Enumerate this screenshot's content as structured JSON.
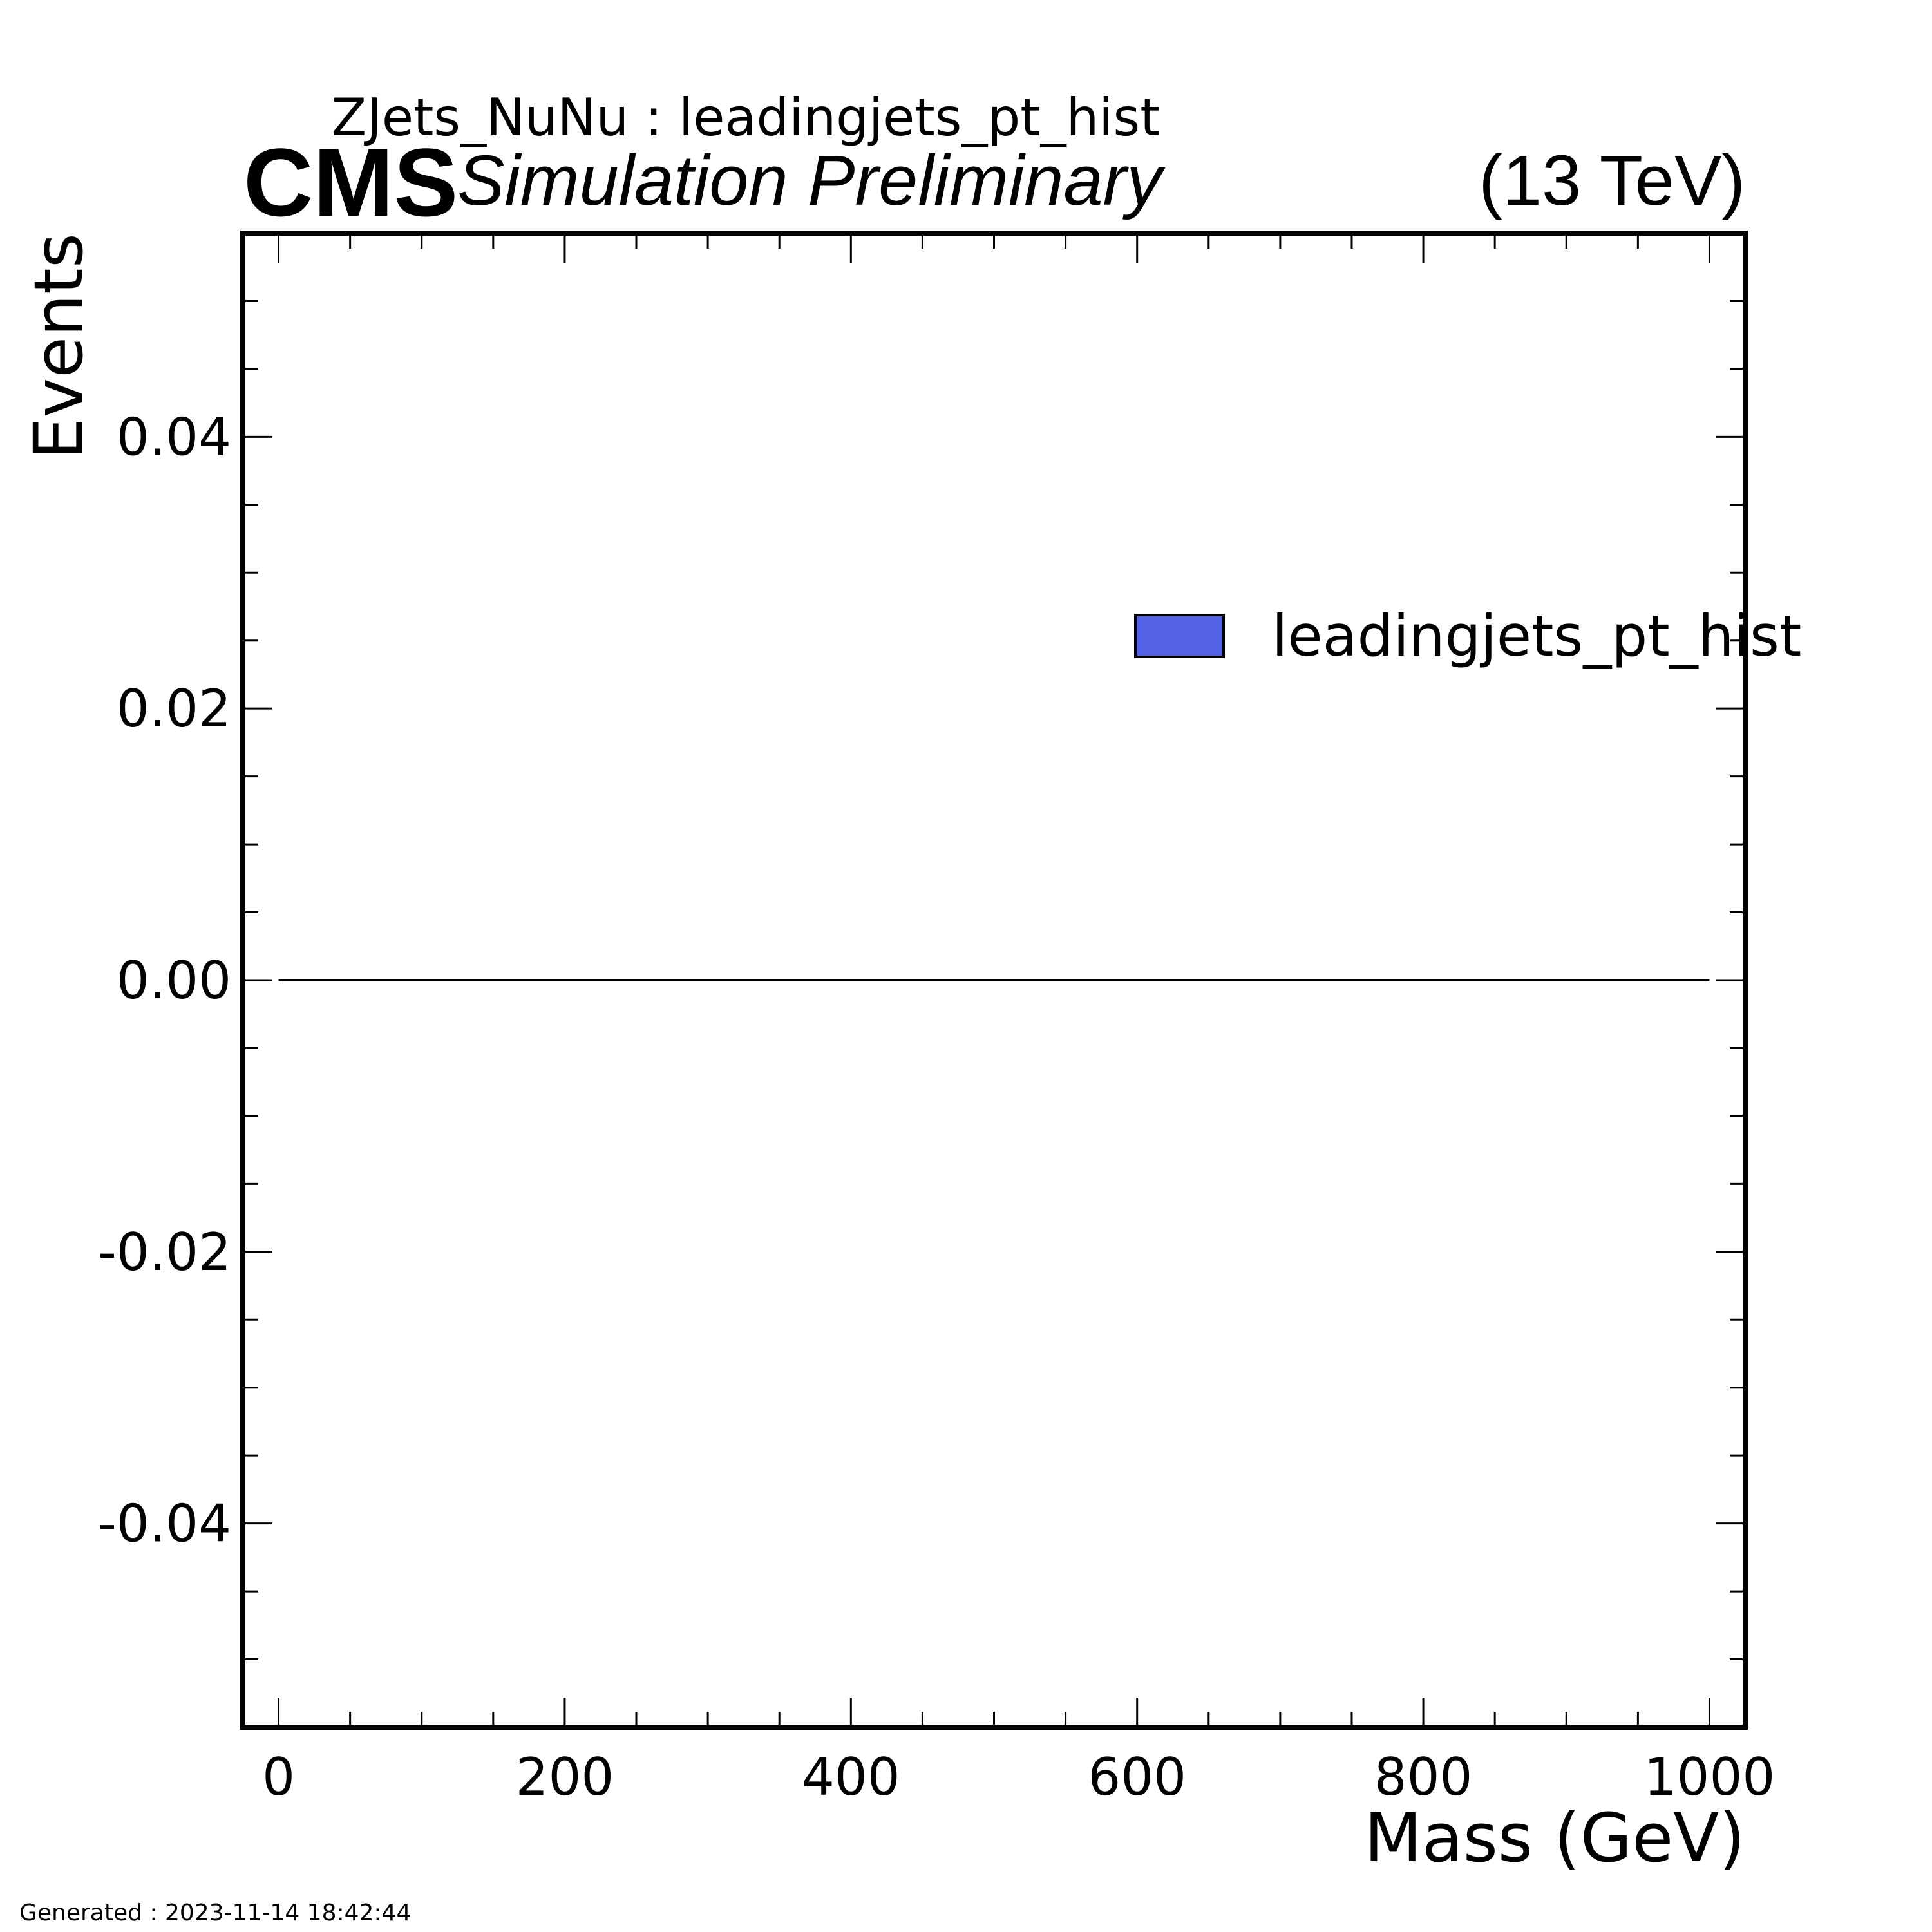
{
  "header": {
    "title": "ZJets_NuNu : leadingjets_pt_hist",
    "experiment": "CMS",
    "status": "Simulation Preliminary",
    "energy": "(13 TeV)"
  },
  "footer": {
    "generated": "Generated : 2023-11-14 18:42:44"
  },
  "chart_data": {
    "type": "bar",
    "title": "ZJets_NuNu : leadingjets_pt_hist",
    "xlabel": "Mass (GeV)",
    "ylabel": "Events",
    "xlim": [
      -25,
      1025
    ],
    "ylim": [
      -0.055,
      0.055
    ],
    "x_major_ticks": [
      0,
      200,
      400,
      600,
      800,
      1000
    ],
    "x_tick_labels": [
      "0",
      "200",
      "400",
      "600",
      "800",
      "1000"
    ],
    "x_minor_step": 50,
    "y_major_ticks": [
      -0.04,
      -0.02,
      0.0,
      0.02,
      0.04
    ],
    "y_tick_labels": [
      "-0.04",
      "-0.02",
      "0.00",
      "0.02",
      "0.04"
    ],
    "y_minor_step": 0.005,
    "series": [
      {
        "name": "leadingjets_pt_hist",
        "color": "#5361e4",
        "edge_color": "#000000",
        "bin_range": [
          0,
          1000
        ],
        "values": [
          0
        ]
      }
    ],
    "legend_position": "right",
    "grid": false
  }
}
